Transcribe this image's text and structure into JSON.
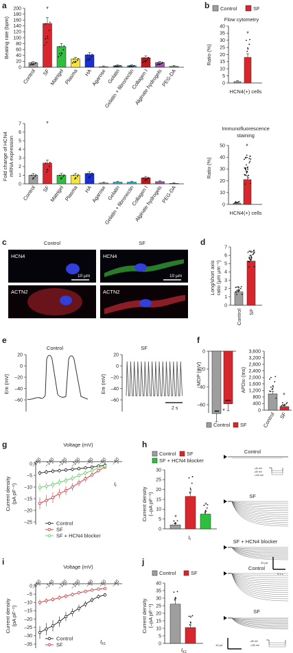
{
  "panel_letters": [
    "a",
    "b",
    "c",
    "d",
    "e",
    "f",
    "g",
    "h",
    "i",
    "j"
  ],
  "colors": {
    "control": "#9e9e9e",
    "sf": "#d8262d",
    "matrigel": "#2fbf3f",
    "plasma": "#f2e63a",
    "ha": "#1b2fd0",
    "gelatin": "#2fb8c8",
    "collagen": "#c0171b",
    "alginate": "#a24fb0",
    "hcn4": "#3fbf3f",
    "nucleus": "#3040d8"
  },
  "panel_a": {
    "top_ylabel": "Beating rate (bpm)",
    "top_ticks": [
      "0",
      "20",
      "40",
      "60",
      "80",
      "100",
      "120",
      "140",
      "160",
      "180",
      "200"
    ],
    "bottom_ylabel_line1": "Fold change of HCN4",
    "bottom_ylabel_line2": "mRNA expression",
    "bottom_ticks": [
      "0",
      "1",
      "2",
      "3",
      "4",
      "5",
      "6",
      "7"
    ],
    "categories": [
      "Control",
      "SF",
      "Matrigel",
      "Plasma",
      "HA",
      "Agarose",
      "Gelatin",
      "Gelatin + fibronectin",
      "Collagen I",
      "Alginate hydrogels",
      "PEG-DA"
    ],
    "beating_rate": [
      15,
      148,
      70,
      28,
      42,
      2,
      5,
      5,
      32,
      16,
      3
    ],
    "hcn4_fold": [
      1.0,
      2.4,
      1.0,
      1.0,
      1.2,
      0.1,
      0.2,
      0.2,
      0.7,
      0.25,
      0.05
    ]
  },
  "panel_b": {
    "legend_control": "Control",
    "legend_sf": "SF",
    "top_title": "Flow cytometry",
    "top_ylabel": "Ratio (%)",
    "top_ticks": [
      "0",
      "5",
      "10",
      "15",
      "20",
      "25",
      "30",
      "35",
      "40"
    ],
    "top_xlabel": "HCN4(+) cells",
    "top_values": [
      1,
      18
    ],
    "bottom_title_line1": "Immunofluorescence",
    "bottom_title_line2": "staining",
    "bottom_ylabel": "Ratio (%)",
    "bottom_ticks": [
      "0",
      "10",
      "20",
      "30",
      "40",
      "50"
    ],
    "bottom_xlabel": "HCN4(+) cells",
    "bottom_values": [
      1,
      21
    ],
    "star": "*"
  },
  "panel_c": {
    "col_control": "Control",
    "col_sf": "SF",
    "label_hcn4": "HCN4",
    "label_actn2": "ACTN2",
    "scale_bar": "10 μm"
  },
  "panel_d": {
    "ylabel_line1": "Long/short axis",
    "ylabel_line2": "ratio (μm μm⁻¹)",
    "ticks": [
      "0",
      "1",
      "2",
      "3",
      "4",
      "5",
      "6",
      "7"
    ],
    "categories": [
      "Control",
      "SF"
    ],
    "values": [
      1.6,
      5.3
    ]
  },
  "panel_e": {
    "title_control": "Control",
    "title_sf": "SF",
    "ylabel": "Em (mV)",
    "ticks": [
      "20",
      "0",
      "–20",
      "–40",
      "–60"
    ],
    "scale_label": "2 s"
  },
  "panel_f": {
    "mdp_ylabel": "MDP (mV)",
    "mdp_ticks": [
      "0",
      "–20",
      "–40",
      "–60"
    ],
    "mdp_values": [
      -70,
      -59
    ],
    "apd_ylabel": "APD",
    "apd_sub": "90",
    "apd_unit": " (ms)",
    "apd_ticks": [
      "0",
      "400",
      "800",
      "1,200",
      "1,600",
      "2,000",
      "2,400",
      "2,800",
      "3,200",
      "3,600"
    ],
    "apd_categories": [
      "Control",
      "SF"
    ],
    "apd_values": [
      1000,
      220
    ],
    "legend_control": "Control",
    "legend_sf": "SF"
  },
  "panel_g": {
    "xlabel": "Voltage (mV)",
    "xticks": [
      "–160",
      "–140",
      "–120",
      "–100",
      "–80",
      "–60",
      "–40"
    ],
    "ylabel_line1": "Current density",
    "ylabel_line2": "(pA pF⁻¹)",
    "yticks": [
      "0",
      "–5",
      "–10",
      "–15",
      "–20",
      "–25"
    ],
    "current_label": "I",
    "current_sub": "f",
    "legend": [
      "Control",
      "SF",
      "SF + HCN4 blocker"
    ],
    "voltages": [
      -160,
      -150,
      -140,
      -130,
      -120,
      -110,
      -100,
      -90,
      -80,
      -70,
      -60
    ],
    "control": [
      -4,
      -3.6,
      -3.2,
      -3.0,
      -2.7,
      -2.4,
      -2.1,
      -1.8,
      -1.5,
      -1.0,
      -0.6
    ],
    "sf": [
      -17,
      -15.8,
      -14.5,
      -12.8,
      -11.5,
      -10,
      -8.2,
      -6.5,
      -4.8,
      -3.0,
      -1.4
    ],
    "blocker": [
      -10.2,
      -9.6,
      -9.0,
      -8.0,
      -7.2,
      -6.2,
      -5.0,
      -4.0,
      -3.0,
      -1.8,
      -0.9
    ]
  },
  "panel_h": {
    "legend_control": "Control",
    "legend_sf": "SF",
    "legend_blocker": "SF + HCN4 blocker",
    "ylabel_line1": "Current density",
    "ylabel_line2": "(–pA pF⁻¹)",
    "ticks": [
      "0",
      "5",
      "10",
      "15",
      "20",
      "25",
      "30"
    ],
    "xlabel": "I",
    "xlabel_sub": "f",
    "values": [
      2,
      16.5,
      7.5
    ],
    "trace_control": "Control",
    "trace_sf": "SF",
    "trace_blocker": "SF + HCN4 blocker",
    "protocol_text": [
      "–40 mV",
      "–60 mV",
      "–130 mV"
    ],
    "scale_y": "20 pA",
    "scale_x": "0.1 s"
  },
  "panel_i": {
    "xlabel": "Voltage (mV)",
    "xticks": [
      "–160",
      "–140",
      "–120",
      "–100",
      "–80",
      "–60",
      "–40"
    ],
    "ylabel_line1": "Current density",
    "ylabel_line2": "(pA pF⁻¹)",
    "yticks": [
      "0",
      "–5",
      "–10",
      "–15",
      "–20",
      "–25",
      "–30",
      "–35"
    ],
    "current_label": "I",
    "current_sub": "K1",
    "legend": [
      "Control",
      "SF"
    ],
    "voltages": [
      -160,
      -150,
      -140,
      -130,
      -120,
      -110,
      -100,
      -90,
      -80,
      -70,
      -60
    ],
    "control": [
      -28,
      -26,
      -24,
      -21.5,
      -18.5,
      -16,
      -13.5,
      -11,
      -8.5,
      -6.5,
      -5.5
    ],
    "sf": [
      -10,
      -9,
      -8.2,
      -7.2,
      -6.2,
      -5.2,
      -4.2,
      -3.4,
      -2.6,
      -2.0,
      -1.6
    ]
  },
  "panel_j": {
    "legend_control": "Control",
    "legend_sf": "SF",
    "ylabel_line1": "Current density",
    "ylabel_line2": "(–pA pF⁻¹)",
    "ticks": [
      "0",
      "5",
      "10",
      "15",
      "20",
      "25",
      "30",
      "35",
      "40"
    ],
    "xlabel": "I",
    "xlabel_sub": "K1",
    "values": [
      26,
      10.5
    ],
    "trace_control": "Control",
    "trace_sf": "SF",
    "protocol_text": [
      "–60 mV",
      "–130 mV"
    ],
    "scale_y": "10 pA"
  }
}
